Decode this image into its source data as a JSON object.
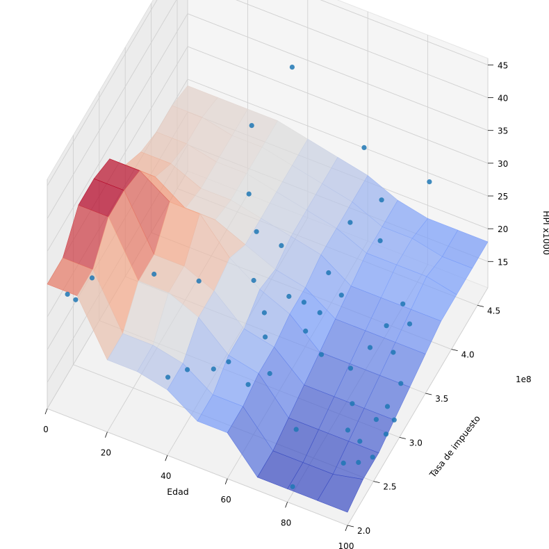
{
  "chart_data": {
    "type": "3d-surface-scatter",
    "xlabel": "Edad",
    "ylabel": "Tasa de impuesto",
    "zlabel": "HPI x1000",
    "y_offset_label": "1e8",
    "x_ticks": [
      0,
      20,
      40,
      60,
      80,
      100
    ],
    "x_tick_labels": [
      "0",
      "20",
      "40",
      "60",
      "80",
      "100"
    ],
    "y_ticks": [
      2.0,
      2.5,
      3.0,
      3.5,
      4.0,
      4.5
    ],
    "y_tick_labels": [
      "2.0",
      "2.5",
      "3.0",
      "3.5",
      "4.0",
      "4.5"
    ],
    "z_ticks": [
      15,
      20,
      25,
      30,
      35,
      40,
      45
    ],
    "z_tick_labels": [
      "15",
      "20",
      "25",
      "30",
      "35",
      "40",
      "45"
    ],
    "xlim": [
      0,
      100
    ],
    "ylim": [
      2.0,
      4.7
    ],
    "zlim": [
      11,
      46
    ],
    "grid": true,
    "colormap": "coolwarm",
    "surface_x": [
      0,
      10,
      20,
      30,
      40,
      50,
      60,
      70,
      80,
      90,
      100
    ],
    "surface_y": [
      2.0,
      2.3,
      2.6,
      2.9,
      3.2,
      3.5,
      3.8,
      4.1,
      4.4,
      4.7
    ],
    "surface_z": [
      [
        30,
        30,
        22,
        22,
        21,
        18,
        18,
        13,
        13,
        13,
        13
      ],
      [
        30,
        30,
        22,
        22,
        21,
        18,
        18,
        13,
        13,
        13,
        14
      ],
      [
        34,
        34,
        26,
        26,
        24,
        20,
        19,
        14,
        14,
        14,
        14
      ],
      [
        34,
        34,
        26,
        26,
        24,
        20,
        19,
        15,
        15,
        15,
        15
      ],
      [
        33,
        33,
        30,
        30,
        25,
        22,
        20,
        16,
        16,
        16,
        16
      ],
      [
        28,
        28,
        25,
        25,
        23,
        21,
        20,
        17,
        17,
        17,
        17
      ],
      [
        26,
        26,
        24,
        24,
        23,
        22,
        21,
        18,
        18,
        18,
        18
      ],
      [
        25,
        25,
        24,
        24,
        23,
        22,
        21,
        19,
        19,
        19,
        18
      ],
      [
        25,
        25,
        24,
        24,
        23,
        22,
        21,
        19,
        19,
        18,
        18
      ],
      [
        24,
        24,
        24,
        24,
        23,
        22,
        21,
        19,
        18,
        18,
        18
      ]
    ],
    "scatter": [
      [
        5,
        2.1,
        28
      ],
      [
        6,
        2.2,
        26
      ],
      [
        8,
        2.4,
        27
      ],
      [
        20,
        2.9,
        23
      ],
      [
        28,
        3.3,
        18
      ],
      [
        35,
        2.3,
        18
      ],
      [
        38,
        2.5,
        17
      ],
      [
        45,
        2.6,
        17
      ],
      [
        50,
        2.6,
        19
      ],
      [
        60,
        2.4,
        20
      ],
      [
        62,
        2.7,
        18
      ],
      [
        55,
        3.0,
        22
      ],
      [
        48,
        3.2,
        23
      ],
      [
        52,
        3.5,
        25
      ],
      [
        66,
        3.6,
        22
      ],
      [
        70,
        3.2,
        22
      ],
      [
        72,
        3.5,
        21
      ],
      [
        68,
        3.9,
        26
      ],
      [
        75,
        4.1,
        28
      ],
      [
        78,
        3.9,
        25
      ],
      [
        40,
        4.4,
        38
      ],
      [
        30,
        4.2,
        30
      ],
      [
        64,
        4.4,
        30
      ],
      [
        84,
        4.5,
        27
      ],
      [
        82,
        3.1,
        17
      ],
      [
        86,
        2.9,
        15
      ],
      [
        88,
        2.7,
        14
      ],
      [
        90,
        2.5,
        12
      ],
      [
        92,
        2.7,
        13
      ],
      [
        94,
        2.9,
        14
      ],
      [
        95,
        2.5,
        13
      ],
      [
        96,
        3.0,
        15
      ],
      [
        97,
        3.2,
        16
      ],
      [
        98,
        2.6,
        13
      ],
      [
        99,
        2.8,
        14
      ],
      [
        100,
        2.9,
        15
      ],
      [
        85,
        3.3,
        18
      ],
      [
        87,
        3.5,
        19
      ],
      [
        89,
        3.7,
        20
      ],
      [
        91,
        3.4,
        17
      ],
      [
        93,
        3.6,
        19
      ],
      [
        58,
        3.3,
        21
      ],
      [
        42,
        3.6,
        24
      ],
      [
        36,
        3.8,
        26
      ],
      [
        80,
        2.1,
        12
      ],
      [
        76,
        2.4,
        16
      ],
      [
        74,
        3.0,
        19
      ],
      [
        67,
        3.1,
        20
      ],
      [
        63,
        3.3,
        21
      ],
      [
        57,
        2.9,
        20
      ]
    ]
  }
}
